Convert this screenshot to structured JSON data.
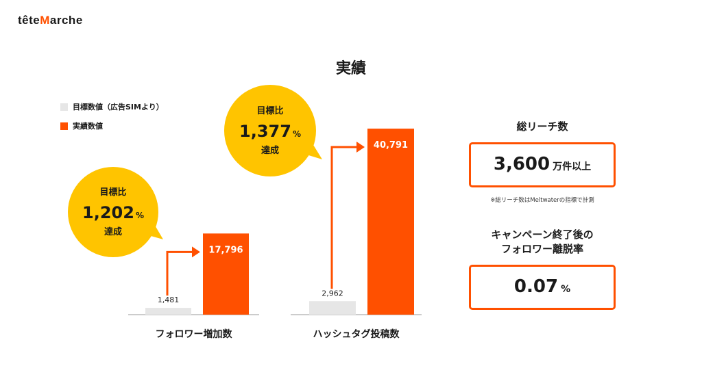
{
  "header": {
    "logo_pre": "tête",
    "logo_mid": "M",
    "logo_post": "arche"
  },
  "title": "実績",
  "legend": [
    {
      "label": "目標数値（広告SIMより）",
      "color": "#e6e6e6"
    },
    {
      "label": "実績数値",
      "color": "#ff5000"
    }
  ],
  "colors": {
    "target": "#e6e6e6",
    "actual": "#ff5000",
    "bubble": "#ffc400",
    "accent": "#ff5000"
  },
  "chart_data": {
    "type": "bar",
    "categories": [
      "フォロワー増加数",
      "ハッシュタグ投稿数"
    ],
    "series": [
      {
        "name": "目標数値（広告SIMより）",
        "values": [
          1481,
          2962
        ]
      },
      {
        "name": "実績数値",
        "values": [
          17796,
          40791
        ]
      }
    ],
    "value_labels": {
      "target": [
        "1,481",
        "2,962"
      ],
      "actual": [
        "17,796",
        "40,791"
      ]
    },
    "ylim": [
      0,
      45000
    ],
    "annotations": [
      {
        "line1": "目標比",
        "number": "1,202",
        "unit": "%",
        "line3": "達成"
      },
      {
        "line1": "目標比",
        "number": "1,377",
        "unit": "%",
        "line3": "達成"
      }
    ]
  },
  "reach": {
    "label": "総リーチ数",
    "value": "3,600",
    "unit": "万件以上",
    "note": "※総リーチ数はMeltwaterの指標で計測"
  },
  "unfollow": {
    "label_line1": "キャンペーン終了後の",
    "label_line2": "フォロワー離脱率",
    "value": "0.07",
    "unit": "%"
  }
}
